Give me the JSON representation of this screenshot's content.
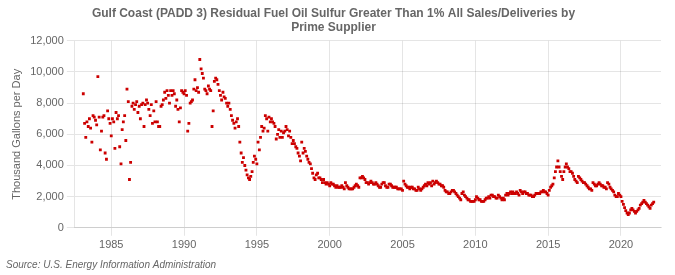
{
  "chart_data": {
    "type": "scatter",
    "title": "Gulf Coast (PADD 3) Residual Fuel Oil Sulfur Greater Than 1% All Sales/Deliveries by\nPrime Supplier",
    "ylabel": "Thousand Gallons per Day",
    "annotations": [
      "Source: U.S. Energy Information Administration"
    ],
    "color": "#cc0000",
    "marker": "square",
    "grid": true,
    "xlim": [
      1982.5,
      2022.75
    ],
    "xticks": [
      1985,
      1990,
      1995,
      2000,
      2005,
      2010,
      2015,
      2020
    ],
    "ylim": [
      0,
      12000
    ],
    "yticks": [
      0,
      {
        "value": 2000,
        "label": "2,000"
      },
      {
        "value": 4000,
        "label": "4,000"
      },
      {
        "value": 6000,
        "label": "6,000"
      },
      {
        "value": 8000,
        "label": "8,000"
      },
      {
        "value": 10000,
        "label": "10,000"
      },
      {
        "value": 12000,
        "label": "12,000"
      }
    ],
    "x": [
      1983.08,
      1983.17,
      1983.25,
      1983.33,
      1983.42,
      1983.5,
      1983.58,
      1983.67,
      1983.75,
      1983.83,
      1983.92,
      1984.0,
      1984.08,
      1984.17,
      1984.25,
      1984.33,
      1984.42,
      1984.5,
      1984.58,
      1984.67,
      1984.75,
      1984.83,
      1984.92,
      1985.0,
      1985.08,
      1985.17,
      1985.25,
      1985.33,
      1985.42,
      1985.5,
      1985.58,
      1985.67,
      1985.75,
      1985.83,
      1985.92,
      1986.0,
      1986.08,
      1986.17,
      1986.25,
      1986.33,
      1986.42,
      1986.5,
      1986.58,
      1986.67,
      1986.75,
      1986.83,
      1986.92,
      1987.0,
      1987.08,
      1987.17,
      1987.25,
      1987.33,
      1987.42,
      1987.5,
      1987.58,
      1987.67,
      1987.75,
      1987.83,
      1987.92,
      1988.0,
      1988.08,
      1988.17,
      1988.25,
      1988.33,
      1988.42,
      1988.5,
      1988.58,
      1988.67,
      1988.75,
      1988.83,
      1988.92,
      1989.0,
      1989.08,
      1989.17,
      1989.25,
      1989.33,
      1989.42,
      1989.5,
      1989.58,
      1989.67,
      1989.75,
      1989.83,
      1989.92,
      1990.0,
      1990.08,
      1990.17,
      1990.25,
      1990.33,
      1990.42,
      1990.5,
      1990.58,
      1990.67,
      1990.75,
      1990.83,
      1990.92,
      1991.0,
      1991.08,
      1991.17,
      1991.25,
      1991.33,
      1991.42,
      1991.5,
      1991.58,
      1991.67,
      1991.75,
      1991.83,
      1991.92,
      1992.0,
      1992.08,
      1992.17,
      1992.25,
      1992.33,
      1992.42,
      1992.5,
      1992.58,
      1992.67,
      1992.75,
      1992.83,
      1992.92,
      1993.0,
      1993.08,
      1993.17,
      1993.25,
      1993.33,
      1993.42,
      1993.5,
      1993.58,
      1993.67,
      1993.75,
      1993.83,
      1993.92,
      1994.0,
      1994.08,
      1994.17,
      1994.25,
      1994.33,
      1994.42,
      1994.5,
      1994.58,
      1994.67,
      1994.75,
      1994.83,
      1994.92,
      1995.0,
      1995.08,
      1995.17,
      1995.25,
      1995.33,
      1995.42,
      1995.5,
      1995.58,
      1995.67,
      1995.75,
      1995.83,
      1995.92,
      1996.0,
      1996.08,
      1996.17,
      1996.25,
      1996.33,
      1996.42,
      1996.5,
      1996.58,
      1996.67,
      1996.75,
      1996.83,
      1996.92,
      1997.0,
      1997.08,
      1997.17,
      1997.25,
      1997.33,
      1997.42,
      1997.5,
      1997.58,
      1997.67,
      1997.75,
      1997.83,
      1997.92,
      1998.0,
      1998.08,
      1998.17,
      1998.25,
      1998.33,
      1998.42,
      1998.5,
      1998.58,
      1998.67,
      1998.75,
      1998.83,
      1998.92,
      1999.0,
      1999.08,
      1999.17,
      1999.25,
      1999.33,
      1999.42,
      1999.5,
      1999.58,
      1999.67,
      1999.75,
      1999.83,
      1999.92,
      2000.0,
      2000.08,
      2000.17,
      2000.25,
      2000.33,
      2000.42,
      2000.5,
      2000.58,
      2000.67,
      2000.75,
      2000.83,
      2000.92,
      2001.0,
      2001.08,
      2001.17,
      2001.25,
      2001.33,
      2001.42,
      2001.5,
      2001.58,
      2001.67,
      2001.75,
      2001.83,
      2001.92,
      2002.0,
      2002.08,
      2002.17,
      2002.25,
      2002.33,
      2002.42,
      2002.5,
      2002.58,
      2002.67,
      2002.75,
      2002.83,
      2002.92,
      2003.0,
      2003.08,
      2003.17,
      2003.25,
      2003.33,
      2003.42,
      2003.5,
      2003.58,
      2003.67,
      2003.75,
      2003.83,
      2003.92,
      2004.0,
      2004.08,
      2004.17,
      2004.25,
      2004.33,
      2004.42,
      2004.5,
      2004.58,
      2004.67,
      2004.75,
      2004.83,
      2004.92,
      2005.0,
      2005.08,
      2005.17,
      2005.25,
      2005.33,
      2005.42,
      2005.5,
      2005.58,
      2005.67,
      2005.75,
      2005.83,
      2005.92,
      2006.0,
      2006.08,
      2006.17,
      2006.25,
      2006.33,
      2006.42,
      2006.5,
      2006.58,
      2006.67,
      2006.75,
      2006.83,
      2006.92,
      2007.0,
      2007.08,
      2007.17,
      2007.25,
      2007.33,
      2007.42,
      2007.5,
      2007.58,
      2007.67,
      2007.75,
      2007.83,
      2007.92,
      2008.0,
      2008.08,
      2008.17,
      2008.25,
      2008.33,
      2008.42,
      2008.5,
      2008.58,
      2008.67,
      2008.75,
      2008.83,
      2008.92,
      2009.0,
      2009.08,
      2009.17,
      2009.25,
      2009.33,
      2009.42,
      2009.5,
      2009.58,
      2009.67,
      2009.75,
      2009.83,
      2009.92,
      2010.0,
      2010.08,
      2010.17,
      2010.25,
      2010.33,
      2010.42,
      2010.5,
      2010.58,
      2010.67,
      2010.75,
      2010.83,
      2010.92,
      2011.0,
      2011.08,
      2011.17,
      2011.25,
      2011.33,
      2011.42,
      2011.5,
      2011.58,
      2011.67,
      2011.75,
      2011.83,
      2011.92,
      2012.0,
      2012.08,
      2012.17,
      2012.25,
      2012.33,
      2012.42,
      2012.5,
      2012.58,
      2012.67,
      2012.75,
      2012.83,
      2012.92,
      2013.0,
      2013.08,
      2013.17,
      2013.25,
      2013.33,
      2013.42,
      2013.5,
      2013.58,
      2013.67,
      2013.75,
      2013.83,
      2013.92,
      2014.0,
      2014.08,
      2014.17,
      2014.25,
      2014.33,
      2014.42,
      2014.5,
      2014.58,
      2014.67,
      2014.75,
      2014.83,
      2014.92,
      2015.0,
      2015.08,
      2015.17,
      2015.25,
      2015.33,
      2015.42,
      2015.5,
      2015.58,
      2015.67,
      2015.75,
      2015.83,
      2015.92,
      2016.0,
      2016.08,
      2016.17,
      2016.25,
      2016.33,
      2016.42,
      2016.5,
      2016.58,
      2016.67,
      2016.75,
      2016.83,
      2016.92,
      2017.0,
      2017.08,
      2017.17,
      2017.25,
      2017.33,
      2017.42,
      2017.5,
      2017.58,
      2017.67,
      2017.75,
      2017.83,
      2017.92,
      2018.0,
      2018.08,
      2018.17,
      2018.25,
      2018.33,
      2018.42,
      2018.5,
      2018.58,
      2018.67,
      2018.75,
      2018.83,
      2018.92,
      2019.0,
      2019.08,
      2019.17,
      2019.25,
      2019.33,
      2019.42,
      2019.5,
      2019.58,
      2019.67,
      2019.75,
      2019.83,
      2019.92,
      2020.0,
      2020.08,
      2020.17,
      2020.25,
      2020.33,
      2020.42,
      2020.5,
      2020.58,
      2020.67,
      2020.75,
      2020.83,
      2020.92,
      2021.0,
      2021.08,
      2021.17,
      2021.25,
      2021.33,
      2021.42,
      2021.5,
      2021.58,
      2021.67,
      2021.75,
      2021.83,
      2021.92,
      2022.0,
      2022.08,
      2022.17,
      2022.25
    ],
    "values": [
      8600,
      6700,
      5800,
      6800,
      6500,
      7000,
      6400,
      5500,
      7200,
      7100,
      6900,
      6600,
      9700,
      7100,
      5000,
      6200,
      7100,
      7200,
      4800,
      4400,
      7500,
      7000,
      6700,
      5900,
      7000,
      6800,
      5100,
      7400,
      7000,
      7200,
      5200,
      4100,
      6300,
      6800,
      7200,
      5600,
      8900,
      8100,
      3100,
      4200,
      7800,
      8000,
      7600,
      7900,
      8100,
      7400,
      7800,
      7000,
      7900,
      8000,
      6500,
      7900,
      8200,
      8000,
      7600,
      7200,
      7900,
      6700,
      7500,
      6800,
      8100,
      6800,
      6500,
      6500,
      7800,
      7900,
      8200,
      8700,
      8300,
      8800,
      8500,
      8000,
      8800,
      8500,
      8800,
      8600,
      7800,
      8200,
      7600,
      6800,
      7700,
      8800,
      8700,
      8600,
      8800,
      8500,
      6200,
      6700,
      8000,
      8100,
      8200,
      8900,
      9500,
      8800,
      9000,
      8700,
      10800,
      10200,
      9900,
      9600,
      8900,
      8800,
      8600,
      9100,
      8900,
      8800,
      6500,
      7500,
      9400,
      9600,
      9500,
      9200,
      8800,
      8500,
      8200,
      8700,
      8400,
      8300,
      8000,
      7800,
      8000,
      7600,
      7200,
      6900,
      6700,
      6400,
      6800,
      7000,
      6500,
      5500,
      4800,
      4200,
      4500,
      4000,
      3700,
      3400,
      3200,
      3100,
      3300,
      3600,
      4200,
      4600,
      4400,
      4100,
      5500,
      5000,
      5800,
      6500,
      6200,
      6400,
      7200,
      7000,
      6200,
      7100,
      6800,
      7000,
      6800,
      6700,
      6500,
      5700,
      6000,
      6300,
      5800,
      6200,
      5800,
      6100,
      6200,
      6500,
      6300,
      5900,
      6200,
      5800,
      5400,
      5600,
      5400,
      5200,
      5100,
      4800,
      4600,
      4300,
      5500,
      4800,
      5100,
      4900,
      4600,
      4400,
      4200,
      4100,
      3800,
      3500,
      3200,
      3100,
      3400,
      3500,
      3200,
      3200,
      3100,
      2900,
      3100,
      2900,
      2800,
      2900,
      2800,
      2700,
      2900,
      2800,
      2800,
      2700,
      2600,
      2700,
      2600,
      2600,
      2600,
      2700,
      2600,
      2500,
      2900,
      2700,
      2600,
      2500,
      2500,
      2500,
      2500,
      2600,
      2700,
      2800,
      2700,
      2600,
      3200,
      3200,
      3300,
      3200,
      3100,
      2900,
      2900,
      2800,
      2900,
      3000,
      2900,
      2800,
      2800,
      2900,
      2800,
      2700,
      2600,
      2600,
      2800,
      2900,
      2900,
      2700,
      2600,
      2600,
      2800,
      2800,
      2700,
      2600,
      2600,
      2600,
      2600,
      2500,
      2500,
      2500,
      2500,
      2400,
      3000,
      2800,
      2700,
      2600,
      2600,
      2500,
      2600,
      2600,
      2500,
      2500,
      2400,
      2400,
      2600,
      2500,
      2400,
      2500,
      2600,
      2700,
      2800,
      2700,
      2900,
      2800,
      2900,
      2700,
      3000,
      2800,
      2900,
      3000,
      2900,
      2800,
      2800,
      2700,
      2700,
      2600,
      2400,
      2300,
      2300,
      2200,
      2200,
      2300,
      2400,
      2400,
      2300,
      2200,
      2100,
      2000,
      1900,
      1800,
      2200,
      2300,
      2100,
      2000,
      1900,
      1800,
      1800,
      1700,
      1700,
      1700,
      1700,
      1800,
      2000,
      1900,
      1800,
      1800,
      1700,
      1700,
      1700,
      1800,
      1900,
      1900,
      2000,
      1900,
      2100,
      2100,
      2000,
      2000,
      1900,
      1900,
      2100,
      2000,
      1900,
      1800,
      1900,
      1800,
      2100,
      2200,
      2100,
      2200,
      2300,
      2200,
      2300,
      2200,
      2200,
      2300,
      2200,
      2100,
      2400,
      2300,
      2200,
      2300,
      2300,
      2200,
      2200,
      2100,
      2100,
      2100,
      2000,
      2000,
      2100,
      2200,
      2200,
      2200,
      2200,
      2300,
      2300,
      2400,
      2300,
      2300,
      2200,
      2100,
      2400,
      2600,
      2700,
      2800,
      3200,
      3600,
      3900,
      4300,
      3900,
      3600,
      3300,
      3100,
      3600,
      3900,
      4100,
      3900,
      3800,
      3600,
      3600,
      3500,
      3300,
      3100,
      3000,
      2900,
      3300,
      3200,
      3100,
      3000,
      2900,
      2900,
      2800,
      2700,
      2600,
      2500,
      2500,
      2400,
      2900,
      2800,
      2700,
      2700,
      2800,
      2900,
      2800,
      2700,
      2700,
      2600,
      2600,
      2500,
      2900,
      2800,
      2600,
      2500,
      2400,
      2300,
      2100,
      2000,
      2000,
      2200,
      2100,
      2000,
      1700,
      1500,
      1300,
      1100,
      950,
      850,
      950,
      1150,
      1250,
      1150,
      1050,
      950,
      1050,
      1150,
      1250,
      1450,
      1550,
      1650,
      1750,
      1650,
      1550,
      1450,
      1350,
      1250,
      1450,
      1550,
      1650
    ]
  }
}
